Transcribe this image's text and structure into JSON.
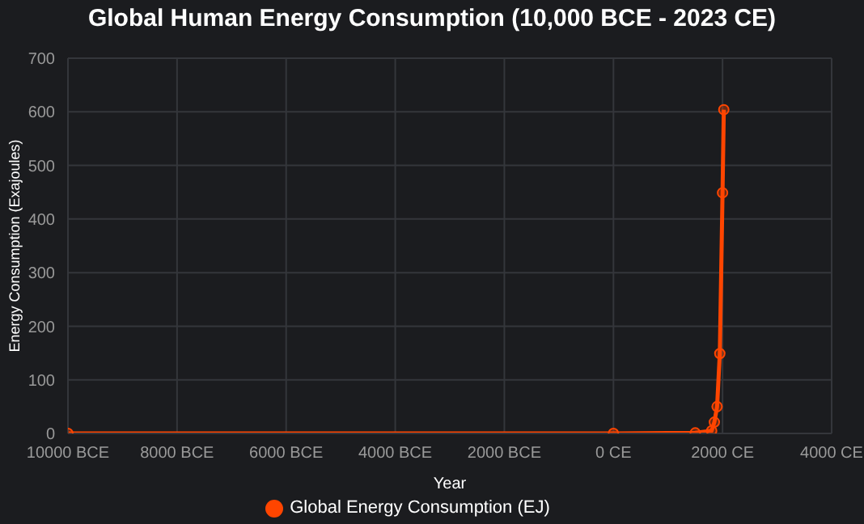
{
  "chart_data": {
    "type": "line",
    "title": "Global Human Energy Consumption (10,000 BCE - 2023 CE)",
    "xlabel": "Year",
    "ylabel": "Energy Consumption (Exajoules)",
    "x": [
      -10000,
      0,
      1500,
      1800,
      1850,
      1900,
      1950,
      2000,
      2023
    ],
    "series": [
      {
        "name": "Global Energy Consumption (EJ)",
        "color": "#ff4500",
        "values": [
          0,
          0,
          1,
          5,
          21,
          50,
          149,
          449,
          604
        ]
      }
    ],
    "xlim": [
      -10000,
      4000
    ],
    "xticks": [
      {
        "value": -10000,
        "label": "10000 BCE"
      },
      {
        "value": -8000,
        "label": "8000 BCE"
      },
      {
        "value": -6000,
        "label": "6000 BCE"
      },
      {
        "value": -4000,
        "label": "4000 BCE"
      },
      {
        "value": -2000,
        "label": "2000 BCE"
      },
      {
        "value": 0,
        "label": "0 CE"
      },
      {
        "value": 2000,
        "label": "2000 CE"
      },
      {
        "value": 4000,
        "label": "4000 CE"
      }
    ],
    "ylim": [
      0,
      700
    ],
    "yticks": [
      0,
      100,
      200,
      300,
      400,
      500,
      600,
      700
    ],
    "grid": true,
    "legend": "bottom",
    "marker": "circle",
    "line_style": "solid"
  }
}
